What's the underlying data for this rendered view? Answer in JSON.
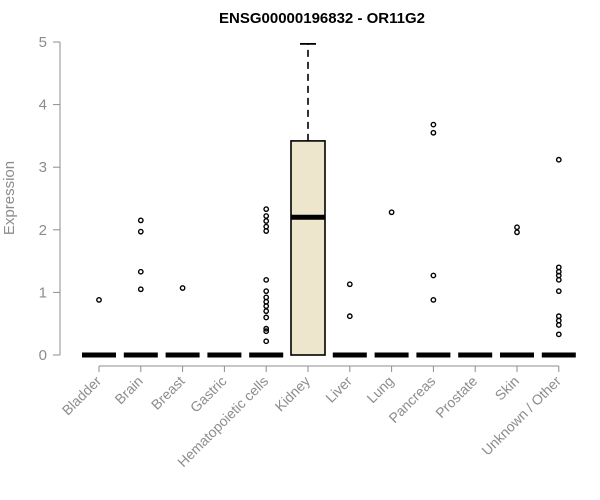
{
  "chart_data": {
    "type": "box",
    "title": "ENSG00000196832 - OR11G2",
    "ylabel": "Expression",
    "xlabel": "",
    "ylim": [
      0,
      5
    ],
    "yticks": [
      0,
      1,
      2,
      3,
      4,
      5
    ],
    "grid": false,
    "colors": {
      "box_fill": "#ede6cc",
      "outline": "#000000",
      "axis": "#8c8c8c",
      "text": "#8c8c8c"
    },
    "categories": [
      "Bladder",
      "Brain",
      "Breast",
      "Gastric",
      "Hematopoietic cells",
      "Kidney",
      "Liver",
      "Lung",
      "Pancreas",
      "Prostate",
      "Skin",
      "Unknown / Other"
    ],
    "boxes": [
      {
        "category": "Bladder",
        "q1": 0,
        "median": 0,
        "q3": 0,
        "whisker_low": 0,
        "whisker_high": 0,
        "outliers": [
          0.88
        ]
      },
      {
        "category": "Brain",
        "q1": 0,
        "median": 0,
        "q3": 0,
        "whisker_low": 0,
        "whisker_high": 0,
        "outliers": [
          2.15,
          1.97,
          1.33,
          1.05
        ]
      },
      {
        "category": "Breast",
        "q1": 0,
        "median": 0,
        "q3": 0,
        "whisker_low": 0,
        "whisker_high": 0,
        "outliers": [
          1.07
        ]
      },
      {
        "category": "Gastric",
        "q1": 0,
        "median": 0,
        "q3": 0,
        "whisker_low": 0,
        "whisker_high": 0,
        "outliers": []
      },
      {
        "category": "Hematopoietic cells",
        "q1": 0,
        "median": 0,
        "q3": 0,
        "whisker_low": 0,
        "whisker_high": 0,
        "outliers": [
          2.33,
          2.22,
          2.14,
          2.05,
          1.98,
          1.2,
          1.02,
          0.92,
          0.85,
          0.78,
          0.7,
          0.6,
          0.42,
          0.38,
          0.22
        ]
      },
      {
        "category": "Kidney",
        "q1": 0,
        "median": 2.2,
        "q3": 3.42,
        "whisker_low": 0,
        "whisker_high": 4.97,
        "outliers": []
      },
      {
        "category": "Liver",
        "q1": 0,
        "median": 0,
        "q3": 0,
        "whisker_low": 0,
        "whisker_high": 0,
        "outliers": [
          1.13,
          0.62
        ]
      },
      {
        "category": "Lung",
        "q1": 0,
        "median": 0,
        "q3": 0,
        "whisker_low": 0,
        "whisker_high": 0,
        "outliers": [
          2.28
        ]
      },
      {
        "category": "Pancreas",
        "q1": 0,
        "median": 0,
        "q3": 0,
        "whisker_low": 0,
        "whisker_high": 0,
        "outliers": [
          3.68,
          3.55,
          1.27,
          0.88
        ]
      },
      {
        "category": "Prostate",
        "q1": 0,
        "median": 0,
        "q3": 0,
        "whisker_low": 0,
        "whisker_high": 0,
        "outliers": []
      },
      {
        "category": "Skin",
        "q1": 0,
        "median": 0,
        "q3": 0,
        "whisker_low": 0,
        "whisker_high": 0,
        "outliers": [
          2.04,
          1.96
        ]
      },
      {
        "category": "Unknown / Other",
        "q1": 0,
        "median": 0,
        "q3": 0,
        "whisker_low": 0,
        "whisker_high": 0,
        "outliers": [
          3.12,
          1.4,
          1.33,
          1.27,
          1.2,
          1.02,
          0.62,
          0.55,
          0.48,
          0.33
        ]
      }
    ]
  }
}
